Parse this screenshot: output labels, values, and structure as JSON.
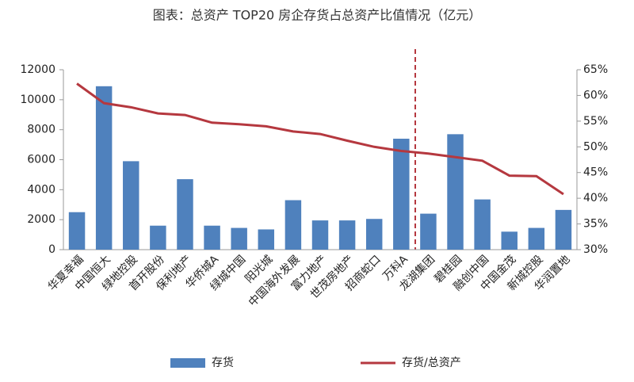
{
  "chart_data": {
    "type": "bar_line",
    "title": "图表：总资产 TOP20 房企存货占总资产比值情况（亿元）",
    "categories": [
      "华夏幸福",
      "中国恒大",
      "绿地控股",
      "首开股份",
      "保利地产",
      "华侨城A",
      "绿城中国",
      "阳光城",
      "中国海外发展",
      "富力地产",
      "世茂房地产",
      "招商蛇口",
      "万科A",
      "龙湖集团",
      "碧桂园",
      "融创中国",
      "中国金茂",
      "新城控股",
      "华润置地"
    ],
    "series": [
      {
        "name": "存货",
        "type": "bar",
        "color": "#4f81bd",
        "values": [
          2500,
          10900,
          5900,
          1600,
          4700,
          1600,
          1450,
          1350,
          3300,
          1950,
          1950,
          2050,
          7400,
          2400,
          7700,
          3350,
          1200,
          1450,
          2650
        ]
      },
      {
        "name": "存货/总资产",
        "type": "line",
        "axis": "y2",
        "color": "#b5383f",
        "values": [
          62.3,
          58.5,
          57.7,
          56.5,
          56.2,
          54.7,
          54.4,
          54.0,
          53.0,
          52.5,
          51.2,
          50.0,
          49.2,
          48.7,
          48.0,
          47.3,
          44.4,
          44.3,
          40.8
        ]
      }
    ],
    "ylim": [
      0,
      12000
    ],
    "yticks": [
      0,
      2000,
      4000,
      6000,
      8000,
      10000,
      12000
    ],
    "y2lim": [
      30,
      65
    ],
    "y2ticks": [
      {
        "value": 30,
        "label": "30%"
      },
      {
        "value": 35,
        "label": "35%"
      },
      {
        "value": 40,
        "label": "40%"
      },
      {
        "value": 45,
        "label": "45%"
      },
      {
        "value": 50,
        "label": "50%"
      },
      {
        "value": 55,
        "label": "55%"
      },
      {
        "value": 60,
        "label": "60%"
      },
      {
        "value": 65,
        "label": "65%"
      }
    ],
    "legend": "bottom"
  }
}
